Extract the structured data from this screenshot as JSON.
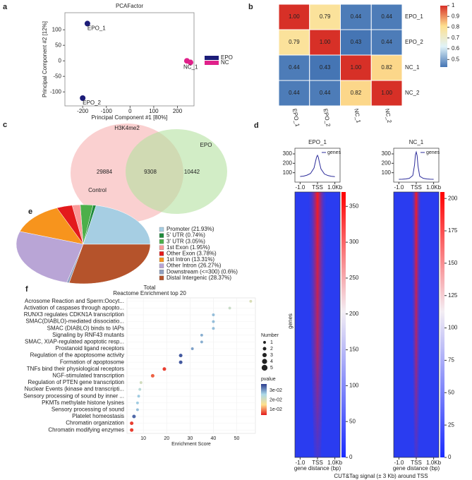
{
  "chart_data": [
    {
      "type": "scatter",
      "panel": "a",
      "title": "PCAFactor",
      "x_label": "Principal Component #1 [80%]",
      "y_label": "Principal Component #2 [12%]",
      "xlim": [
        -275,
        270
      ],
      "ylim": [
        -145,
        155
      ],
      "xticks": [
        -200,
        -100,
        0,
        100,
        200
      ],
      "yticks": [
        -100,
        -50,
        0,
        50,
        100
      ],
      "series": [
        {
          "name": "EPO",
          "color": "#1c1c78",
          "x": [
            -180,
            -200
          ],
          "values": [
            120,
            -120
          ],
          "labels": [
            "EPO_1",
            "EPO_2"
          ]
        },
        {
          "name": "NC",
          "color": "#e0218a",
          "x": [
            255,
            240
          ],
          "values": [
            -5,
            0
          ],
          "labels": [
            "NC_1",
            null
          ]
        }
      ]
    },
    {
      "type": "heatmap",
      "panel": "b",
      "rows": [
        "EPO_1",
        "EPO_2",
        "NC_1",
        "NC_2"
      ],
      "columns": [
        "EPO_1",
        "EPO_2",
        "NC_1",
        "NC_2"
      ],
      "values": [
        [
          1,
          0.79,
          0.44,
          0.44
        ],
        [
          0.79,
          1,
          0.43,
          0.44
        ],
        [
          0.44,
          0.43,
          1,
          0.82
        ],
        [
          0.44,
          0.44,
          0.82,
          1
        ]
      ],
      "value_labels": [
        [
          "1.00",
          "0.79",
          "0.44",
          "0.44"
        ],
        [
          "0.79",
          "1.00",
          "0.43",
          "0.44"
        ],
        [
          "0.44",
          "0.43",
          "1.00",
          "0.82"
        ],
        [
          "0.44",
          "0.44",
          "0.82",
          "1.00"
        ]
      ],
      "zlim": [
        0.43,
        1
      ],
      "zticks": [
        0.5,
        0.6,
        0.7,
        0.8,
        0.9,
        1
      ],
      "colors": [
        "#4575b4",
        "#e0f3f8",
        "#fee090",
        "#d73027"
      ]
    },
    {
      "type": "venn",
      "panel": "c",
      "title": "H3K4me2",
      "sets": [
        "Control",
        "EPO"
      ],
      "values": [
        29884,
        9308,
        10442
      ]
    },
    {
      "type": "tss",
      "panel": "d",
      "title": "EPO_1",
      "legend_label": "genes",
      "x_label": "gene distance (bp)",
      "y_label": "genes",
      "caption": "CUT&Tag signal (± 3 Kb) around TSS",
      "x": [
        -1000,
        -800,
        -600,
        -400,
        -200,
        -100,
        -50,
        0,
        50,
        100,
        200,
        400,
        600,
        800,
        1000
      ],
      "values": [
        60,
        64,
        74,
        92,
        150,
        230,
        268,
        285,
        262,
        218,
        140,
        86,
        70,
        62,
        58
      ],
      "xlim": [
        -1300,
        1300
      ],
      "xticks": [
        {
          "value": -1000,
          "label": "-1.0"
        },
        {
          "value": 0,
          "label": "TSS"
        },
        {
          "value": 1000,
          "label": "1.0Kb"
        }
      ],
      "ylim": [
        0,
        360
      ],
      "yticks": [
        100,
        200,
        300
      ],
      "clim": [
        0,
        370
      ],
      "cticks": [
        0,
        50,
        100,
        150,
        200,
        250,
        300,
        350
      ]
    },
    {
      "type": "tss",
      "title": "NC_1",
      "legend_label": "genes",
      "x": [
        -1000,
        -800,
        -600,
        -400,
        -200,
        -100,
        -50,
        0,
        50,
        100,
        200,
        400,
        600,
        800,
        1000
      ],
      "values": [
        30,
        31,
        34,
        40,
        70,
        180,
        290,
        320,
        280,
        170,
        62,
        40,
        34,
        31,
        30
      ],
      "xlim": [
        -1300,
        1300
      ],
      "xticks": [
        {
          "value": -1000,
          "label": "-1.0"
        },
        {
          "value": 0,
          "label": "TSS"
        },
        {
          "value": 1000,
          "label": "1.0Kb"
        }
      ],
      "ylim": [
        0,
        360
      ],
      "yticks": [
        100,
        200,
        300
      ],
      "clim": [
        0,
        205
      ],
      "cticks": [
        0,
        25,
        50,
        75,
        100,
        125,
        150,
        175,
        200
      ]
    },
    {
      "type": "pie",
      "panel": "e",
      "categories": [
        "Promoter",
        "5' UTR",
        "3' UTR",
        "1st Exon",
        "Other Exon",
        "1st Intron",
        "Other Intron",
        "Downstream",
        "Distal Intergenic"
      ],
      "labels": [
        "Promoter (21.93%)",
        "5' UTR (0.74%)",
        "3' UTR (3.05%)",
        "1st Exon (1.95%)",
        "Other Exon (3.78%)",
        "1st Intron (13.31%)",
        "Other Intron (26.27%)",
        "Downstream (<=300) (0.6%)",
        "Distal Intergenic (28.37%)"
      ],
      "values": [
        21.93,
        0.74,
        3.05,
        1.95,
        3.78,
        13.31,
        26.27,
        0.6,
        28.37
      ],
      "colors": [
        "#a6cee3",
        "#1f8a3c",
        "#4daf4a",
        "#fb9a99",
        "#e31a1c",
        "#f7941d",
        "#b9a5d6",
        "#8f9fbf",
        "#b5532b"
      ]
    },
    {
      "type": "dotplot",
      "panel": "f",
      "title": "Total",
      "subtitle": "Reactome Enrichment top 20",
      "x_label": "Enrichment Score",
      "categories": [
        "Acrosome Reaction and Sperm:Oocyt...",
        "Activation of caspases through apopto...",
        "RUNX3 regulates CDKN1A transcription",
        "SMAC(DIABLO)-mediated dissociatio...",
        "SMAC (DIABLO) binds to IAPs",
        "Signaling by RNF43 mutants",
        "SMAC, XIAP-regulated apoptotic resp...",
        "Prostanoid ligand receptors",
        "Regulation of the apoptosome activity",
        "Formation of apoptosome",
        "TNFs bind their physiological receptors",
        "NGF-stimulated transcription",
        "Regulation of PTEN gene transcription",
        "Nuclear Events (kinase and transcripti...",
        "Sensory processing of sound by inner ...",
        "PKMTs methylate histone lysines",
        "Sensory processing of sound",
        "Platelet homeostasis",
        "Chromatin organization",
        "Chromatin modifying enzymes"
      ],
      "values": [
        56,
        47,
        40,
        40,
        40,
        35,
        35,
        31,
        26,
        26,
        19,
        14,
        9,
        8.5,
        8,
        7.5,
        7.5,
        6,
        5,
        5
      ],
      "pvalue": [
        0.02,
        0.022,
        0.028,
        0.028,
        0.028,
        0.029,
        0.029,
        0.03,
        0.035,
        0.035,
        0.006,
        0.008,
        0.021,
        0.024,
        0.027,
        0.027,
        0.028,
        0.034,
        0.006,
        0.006
      ],
      "count": [
        1,
        1,
        1,
        1,
        1,
        1,
        1,
        1,
        2,
        2,
        2,
        2,
        1,
        1,
        1,
        1,
        1,
        2,
        2,
        2
      ],
      "xlim": [
        3,
        58
      ],
      "xticks": [
        10,
        20,
        30,
        40,
        50
      ],
      "size_title": "Number",
      "size_ticks": [
        1,
        2,
        3,
        4,
        5
      ],
      "color_title": "pvalue",
      "clim": [
        0.004,
        0.037
      ],
      "cticks": [
        {
          "value": 0.01,
          "label": "1e-02"
        },
        {
          "value": 0.02,
          "label": "2e-02"
        },
        {
          "value": 0.03,
          "label": "3e-02"
        }
      ],
      "colors": [
        "#e41a1c",
        "#fee08b",
        "#abd9e9",
        "#2c3d8f"
      ]
    }
  ]
}
